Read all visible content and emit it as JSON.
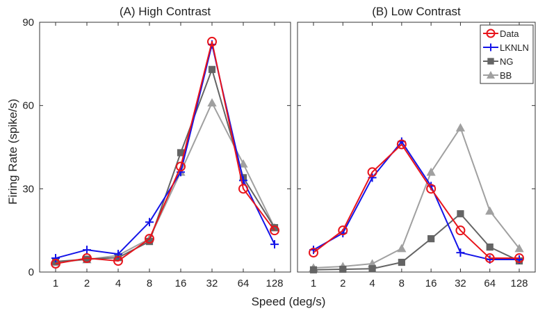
{
  "figure": {
    "xlabel": "Speed (deg/s)",
    "ylabel": "Firing Rate (spike/s)"
  },
  "legend": {
    "placement": "top-right of panel B",
    "entries": [
      {
        "name": "Data",
        "marker": "circle-icon",
        "color": "#e8141b"
      },
      {
        "name": "LKNLN",
        "marker": "plus-icon",
        "color": "#1414e8"
      },
      {
        "name": "NG",
        "marker": "square-icon",
        "color": "#646464"
      },
      {
        "name": "BB",
        "marker": "triangle-icon",
        "color": "#a0a0a0"
      }
    ]
  },
  "chart_data": [
    {
      "type": "line",
      "title": "(A) High Contrast",
      "x_scale": "log2",
      "categories": [
        "1",
        "2",
        "4",
        "8",
        "16",
        "32",
        "64",
        "128"
      ],
      "x": [
        1,
        2,
        4,
        8,
        16,
        32,
        64,
        128
      ],
      "ylim": [
        0,
        90
      ],
      "yticks": [
        "0",
        "30",
        "60",
        "90"
      ],
      "grid": false,
      "series": [
        {
          "name": "BB",
          "color": "#a0a0a0",
          "marker": "triangle",
          "values": [
            3.5,
            4.5,
            6,
            12,
            36,
            61,
            39,
            16
          ]
        },
        {
          "name": "NG",
          "color": "#646464",
          "marker": "square",
          "values": [
            3.8,
            4.6,
            5.2,
            11,
            43,
            73,
            34,
            16
          ]
        },
        {
          "name": "LKNLN",
          "color": "#1414e8",
          "marker": "plus",
          "values": [
            5,
            8,
            6.5,
            18,
            36,
            82,
            33,
            10
          ]
        },
        {
          "name": "Data",
          "color": "#e8141b",
          "marker": "circle",
          "values": [
            3,
            5,
            4,
            12,
            38,
            83,
            30,
            15
          ]
        }
      ]
    },
    {
      "type": "line",
      "title": "(B) Low Contrast",
      "x_scale": "log2",
      "categories": [
        "1",
        "2",
        "4",
        "8",
        "16",
        "32",
        "64",
        "128"
      ],
      "x": [
        1,
        2,
        4,
        8,
        16,
        32,
        64,
        128
      ],
      "ylim": [
        0,
        90
      ],
      "grid": false,
      "series": [
        {
          "name": "BB",
          "color": "#a0a0a0",
          "marker": "triangle",
          "values": [
            1.5,
            2,
            3,
            8.5,
            36,
            52,
            22,
            8.5
          ]
        },
        {
          "name": "NG",
          "color": "#646464",
          "marker": "square",
          "values": [
            0.8,
            1,
            1.2,
            3.5,
            12,
            21,
            9,
            4
          ]
        },
        {
          "name": "LKNLN",
          "color": "#1414e8",
          "marker": "plus",
          "values": [
            8,
            14,
            34,
            47,
            31,
            7,
            4.5,
            4.5
          ]
        },
        {
          "name": "Data",
          "color": "#e8141b",
          "marker": "circle",
          "values": [
            7,
            15,
            36,
            46,
            30,
            15,
            5,
            5
          ]
        }
      ]
    }
  ]
}
